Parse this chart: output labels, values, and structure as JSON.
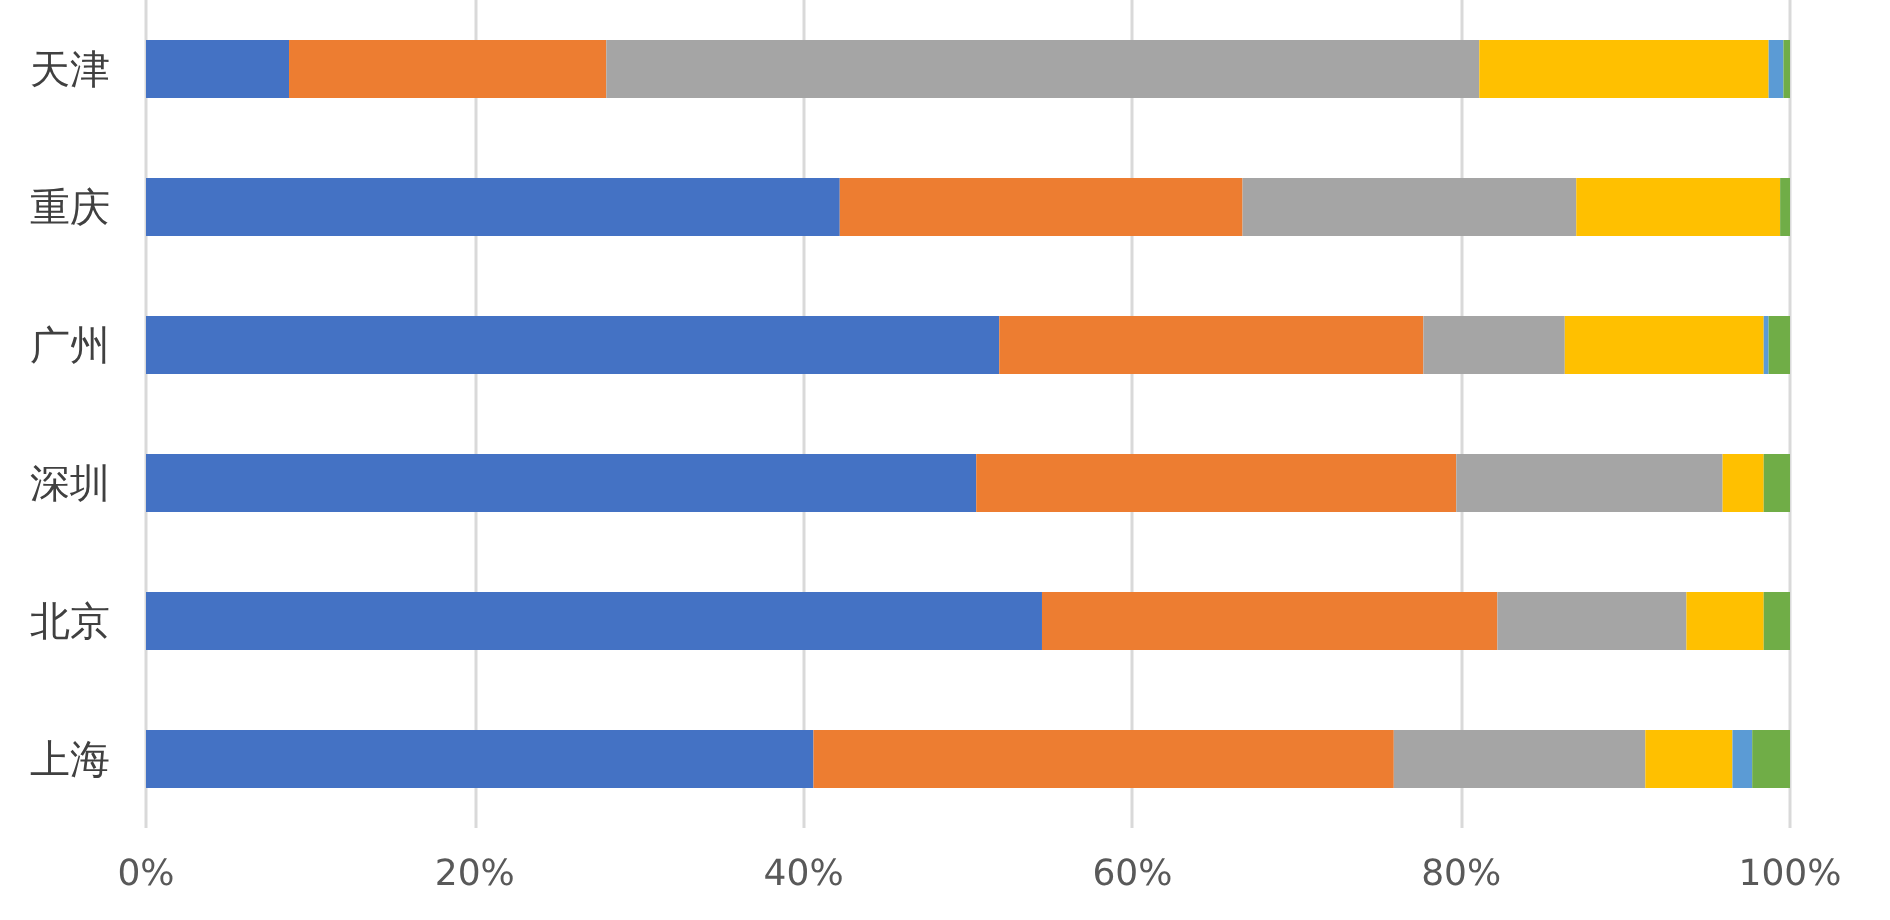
{
  "chart_data": {
    "type": "bar",
    "orientation": "horizontal",
    "stacked": true,
    "categories": [
      "天津",
      "重庆",
      "广州",
      "深圳",
      "北京",
      "上海"
    ],
    "series": [
      {
        "color": "#4472c4",
        "values": [
          8.7,
          42.2,
          51.9,
          50.5,
          54.5,
          40.6
        ]
      },
      {
        "color": "#ed7d31",
        "values": [
          19.3,
          24.5,
          25.8,
          29.2,
          27.7,
          35.3
        ]
      },
      {
        "color": "#a5a5a5",
        "values": [
          53.1,
          20.3,
          8.6,
          16.2,
          11.5,
          15.3
        ]
      },
      {
        "color": "#ffc000",
        "values": [
          17.6,
          12.4,
          12.1,
          2.5,
          4.7,
          5.3
        ]
      },
      {
        "color": "#5b9bd5",
        "values": [
          0.9,
          0,
          0.3,
          0,
          0,
          1.2
        ]
      },
      {
        "color": "#70ad47",
        "values": [
          0.4,
          0.6,
          1.3,
          1.6,
          1.6,
          2.3
        ]
      }
    ],
    "xlim": [
      0,
      100
    ],
    "xticks": [
      {
        "value": 0,
        "label": "0%"
      },
      {
        "value": 20,
        "label": "20%"
      },
      {
        "value": 40,
        "label": "40%"
      },
      {
        "value": 60,
        "label": "60%"
      },
      {
        "value": 80,
        "label": "80%"
      },
      {
        "value": 100,
        "label": "100%"
      }
    ],
    "grid": "x"
  }
}
